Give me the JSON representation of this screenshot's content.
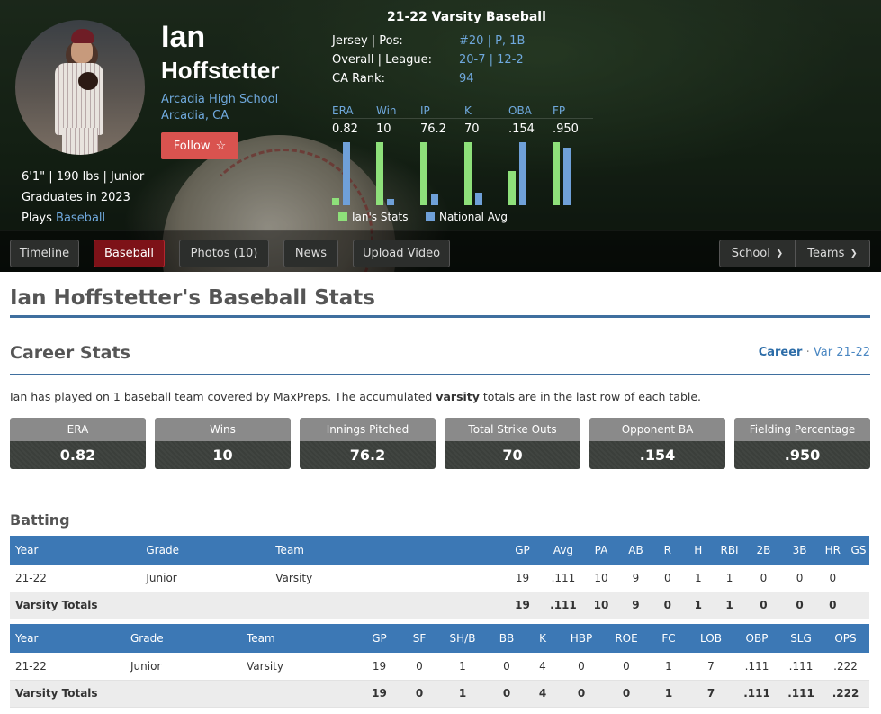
{
  "player": {
    "first_name": "Ian",
    "last_name": "Hoffstetter",
    "school": "Arcadia High School",
    "city": "Arcadia, CA",
    "follow_label": "Follow",
    "bio_line1": "6'1\" | 190 lbs | Junior",
    "bio_line2": "Graduates in 2023",
    "bio_plays_prefix": "Plays",
    "bio_sport": "Baseball"
  },
  "season": {
    "title": "21-22 Varsity Baseball",
    "info": [
      {
        "label": "Jersey | Pos:",
        "value": "#20 | P, 1B"
      },
      {
        "label": "Overall | League:",
        "value": "20-7 | 12-2"
      },
      {
        "label": "CA Rank:",
        "value": "94"
      }
    ],
    "stats": [
      {
        "label": "ERA",
        "value": "0.82",
        "ian": 0.08,
        "nat": 0.7
      },
      {
        "label": "Win",
        "value": "10",
        "ian": 0.7,
        "nat": 0.07
      },
      {
        "label": "IP",
        "value": "76.2",
        "ian": 0.7,
        "nat": 0.12
      },
      {
        "label": "K",
        "value": "70",
        "ian": 0.7,
        "nat": 0.14
      },
      {
        "label": "OBA",
        "value": ".154",
        "ian": 0.38,
        "nat": 0.7
      },
      {
        "label": "FP",
        "value": ".950",
        "ian": 0.7,
        "nat": 0.64
      }
    ],
    "legend_ian": "Ian's Stats",
    "legend_nat": "National Avg",
    "colors": {
      "ian": "#8ee07a",
      "nat": "#6fa0d8"
    }
  },
  "nav": {
    "tabs": [
      "Timeline",
      "Baseball",
      "Photos (10)",
      "News",
      "Upload Video"
    ],
    "active_tab": "Baseball",
    "school_label": "School",
    "teams_label": "Teams"
  },
  "page": {
    "title": "Ian Hoffstetter's Baseball Stats",
    "career_heading": "Career Stats",
    "career_link": "Career",
    "career_sep": "·",
    "var_link": "Var 21-22",
    "description_pre": "Ian has played on 1 baseball team covered by MaxPreps. The accumulated ",
    "description_bold": "varsity",
    "description_post": " totals are in the last row of each table."
  },
  "tiles": [
    {
      "label": "ERA",
      "value": "0.82"
    },
    {
      "label": "Wins",
      "value": "10"
    },
    {
      "label": "Innings Pitched",
      "value": "76.2"
    },
    {
      "label": "Total Strike Outs",
      "value": "70"
    },
    {
      "label": "Opponent BA",
      "value": ".154"
    },
    {
      "label": "Fielding Percentage",
      "value": ".950"
    }
  ],
  "batting": {
    "heading": "Batting",
    "table1": {
      "headers": [
        "Year",
        "Grade",
        "Team",
        "GP",
        "Avg",
        "PA",
        "AB",
        "R",
        "H",
        "RBI",
        "2B",
        "3B",
        "HR",
        "GS"
      ],
      "row": [
        "21-22",
        "Junior",
        "Varsity",
        "19",
        ".111",
        "10",
        "9",
        "0",
        "1",
        "1",
        "0",
        "0",
        "0",
        ""
      ],
      "totals": [
        "Varsity Totals",
        "",
        "",
        "19",
        ".111",
        "10",
        "9",
        "0",
        "1",
        "1",
        "0",
        "0",
        "0",
        ""
      ]
    },
    "table2": {
      "headers": [
        "Year",
        "Grade",
        "Team",
        "GP",
        "SF",
        "SH/B",
        "BB",
        "K",
        "HBP",
        "ROE",
        "FC",
        "LOB",
        "OBP",
        "SLG",
        "OPS"
      ],
      "row": [
        "21-22",
        "Junior",
        "Varsity",
        "19",
        "0",
        "1",
        "0",
        "4",
        "0",
        "0",
        "1",
        "7",
        ".111",
        ".111",
        ".222"
      ],
      "totals": [
        "Varsity Totals",
        "",
        "",
        "19",
        "0",
        "1",
        "0",
        "4",
        "0",
        "0",
        "1",
        "7",
        ".111",
        ".111",
        ".222"
      ]
    }
  }
}
